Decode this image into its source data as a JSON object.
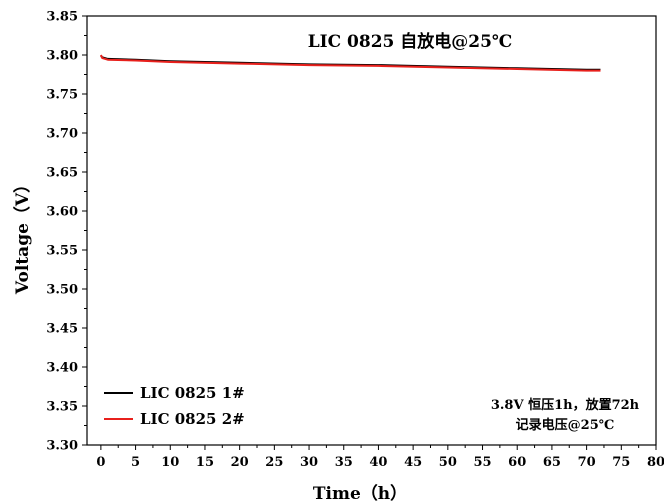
{
  "chart_data": {
    "type": "line",
    "title": "LIC 0825 自放电@25℃",
    "xlabel": "Time（h）",
    "ylabel": "Voltage（V）",
    "xlim": [
      -2,
      80
    ],
    "ylim": [
      3.3,
      3.85
    ],
    "x_ticks": [
      0,
      5,
      10,
      15,
      20,
      25,
      30,
      35,
      40,
      45,
      50,
      55,
      60,
      65,
      70,
      75,
      80
    ],
    "y_ticks": [
      "3.30",
      "3.35",
      "3.40",
      "3.45",
      "3.50",
      "3.55",
      "3.60",
      "3.65",
      "3.70",
      "3.75",
      "3.80",
      "3.85"
    ],
    "grid": false,
    "legend_position": "bottom-left",
    "annotation_lines": [
      "3.8V 恒压1h，放置72h",
      "记录电压@25℃"
    ],
    "series": [
      {
        "name": "LIC 0825 1#",
        "color": "#000000",
        "x": [
          0,
          0.2,
          1,
          5,
          10,
          20,
          30,
          40,
          50,
          60,
          70,
          72
        ],
        "y": [
          3.799,
          3.797,
          3.795,
          3.794,
          3.792,
          3.79,
          3.788,
          3.787,
          3.785,
          3.783,
          3.781,
          3.781
        ]
      },
      {
        "name": "LIC 0825 2#",
        "color": "#e8201c",
        "x": [
          0,
          0.2,
          1,
          5,
          10,
          20,
          30,
          40,
          50,
          60,
          70,
          72
        ],
        "y": [
          3.8,
          3.796,
          3.794,
          3.793,
          3.791,
          3.789,
          3.787,
          3.786,
          3.784,
          3.782,
          3.78,
          3.78
        ]
      }
    ]
  }
}
